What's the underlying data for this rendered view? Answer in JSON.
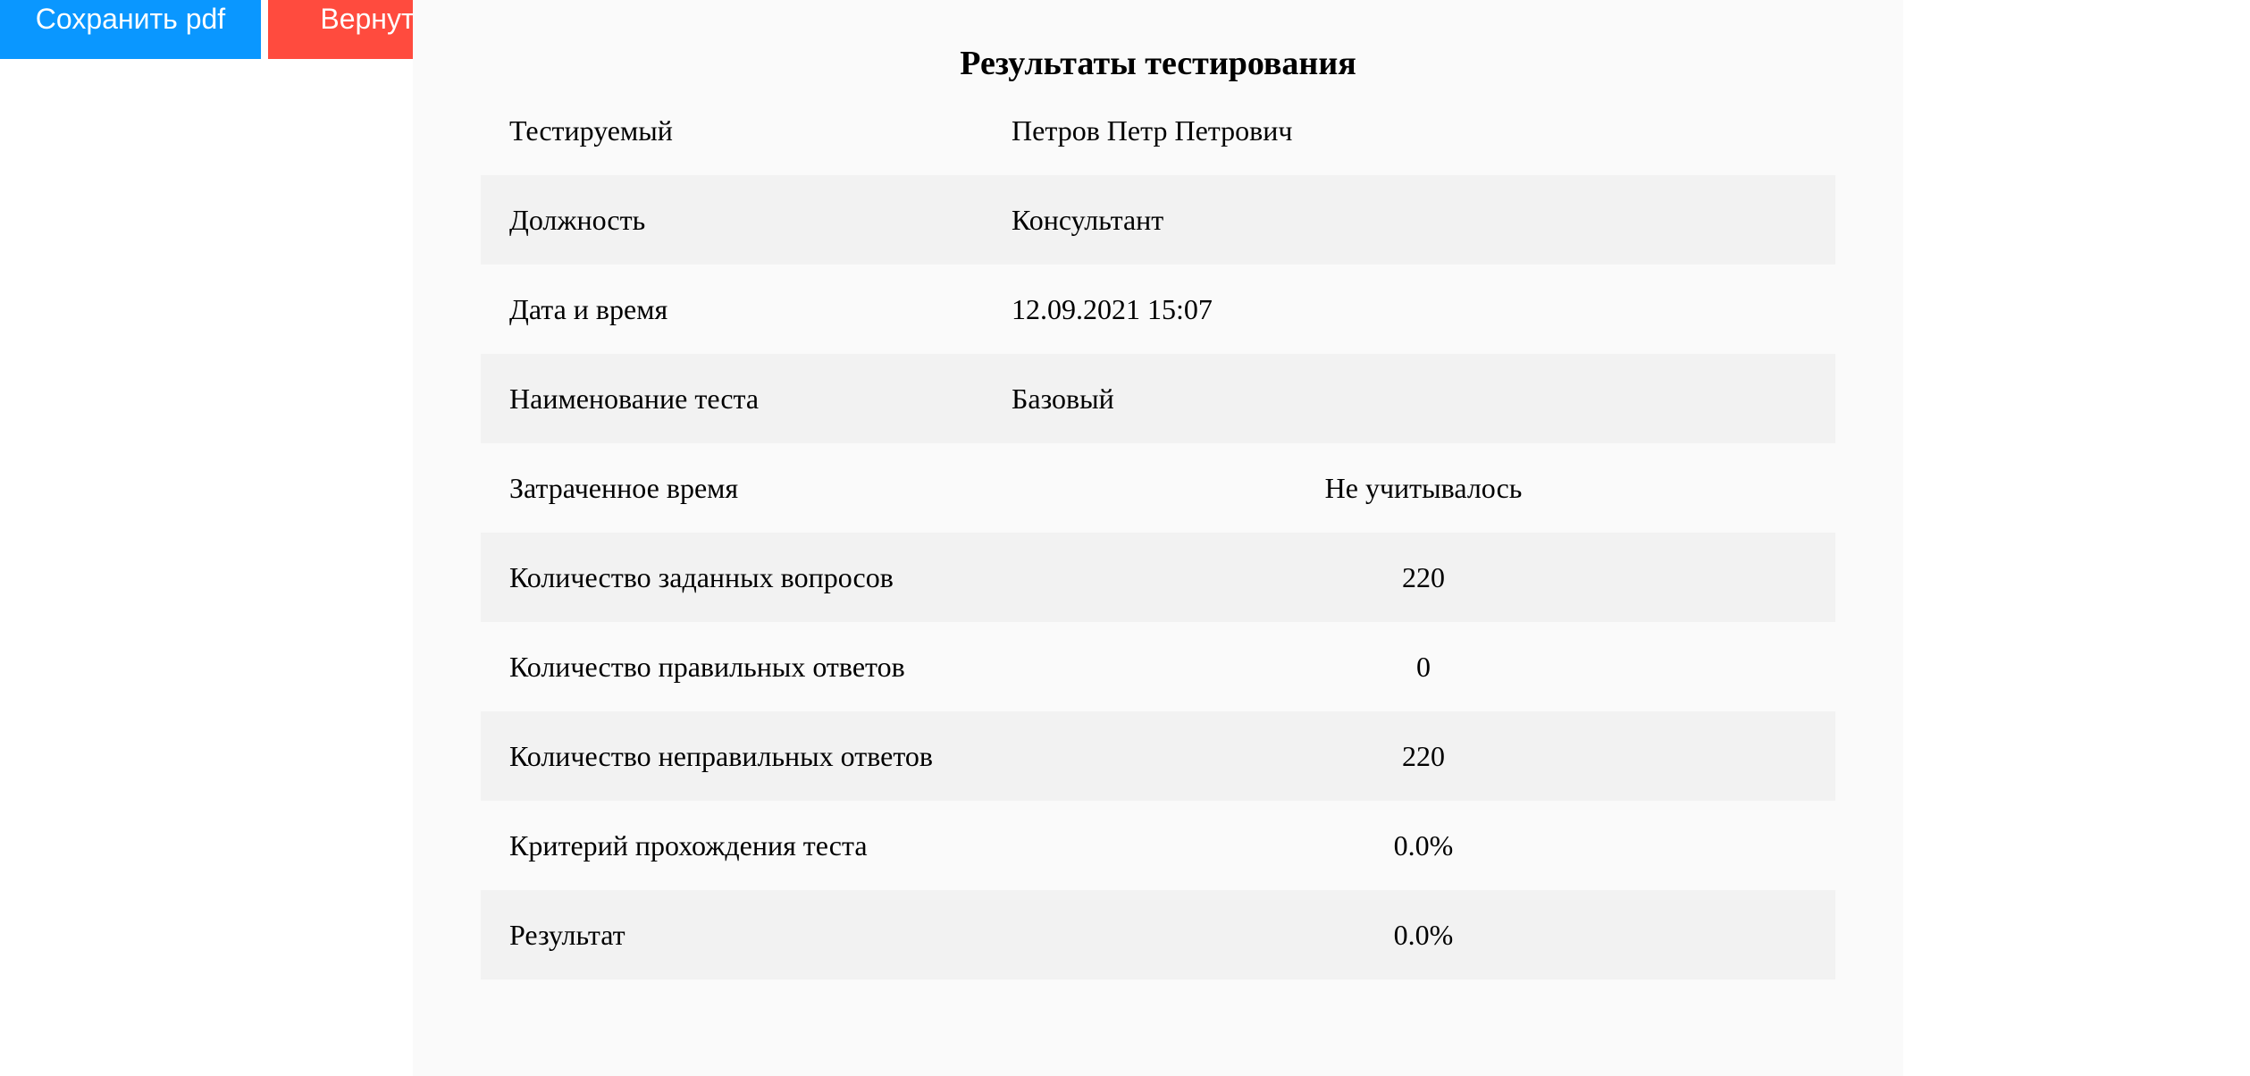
{
  "toolbar": {
    "save_label": "Сохранить pdf",
    "back_label": "Вернуться",
    "save_color": "#0a97ff",
    "back_color": "#ff4b3e"
  },
  "report": {
    "title": "Результаты тестирования",
    "rows": [
      {
        "label": "Тестируемый",
        "value": "Петров Петр Петрович",
        "align": "left"
      },
      {
        "label": "Должность",
        "value": "Консультант",
        "align": "left"
      },
      {
        "label": "Дата и время",
        "value": "12.09.2021 15:07",
        "align": "left"
      },
      {
        "label": "Наименование теста",
        "value": "Базовый",
        "align": "left"
      },
      {
        "label": "Затраченное время",
        "value": "Не учитывалось",
        "align": "center"
      },
      {
        "label": "Количество заданных вопросов",
        "value": "220",
        "align": "center"
      },
      {
        "label": "Количество правильных ответов",
        "value": "0",
        "align": "center"
      },
      {
        "label": "Количество неправильных ответов",
        "value": "220",
        "align": "center"
      },
      {
        "label": "Критерий прохождения теста",
        "value": "0.0%",
        "align": "center"
      },
      {
        "label": "Результат",
        "value": "0.0%",
        "align": "center"
      }
    ]
  }
}
